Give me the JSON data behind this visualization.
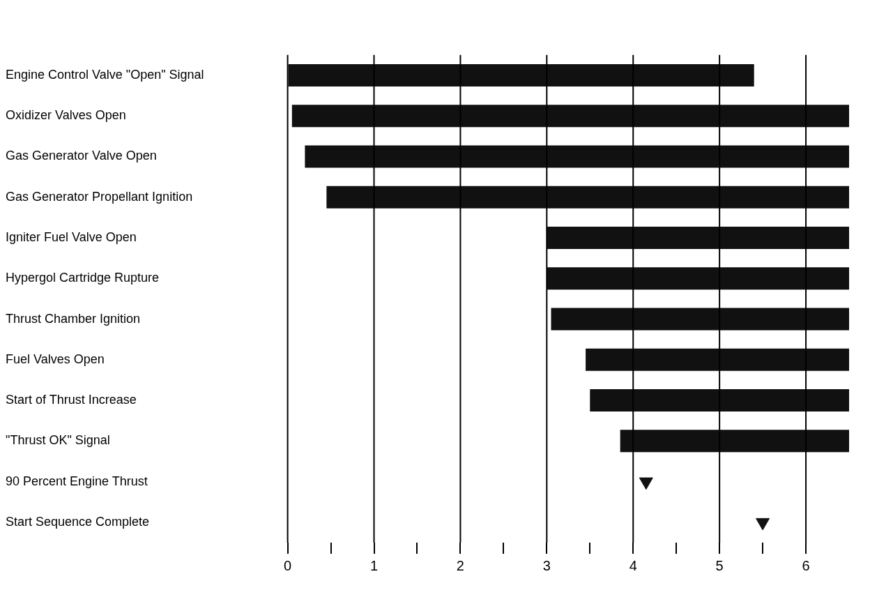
{
  "chart_data": {
    "type": "bar",
    "orientation": "horizontal",
    "categories": [
      "Engine Control Valve \"Open\" Signal",
      "Oxidizer Valves Open",
      "Gas Generator Valve Open",
      "Gas Generator Propellant Ignition",
      "Igniter Fuel Valve Open",
      "Hypergol Cartridge Rupture",
      "Thrust Chamber Ignition",
      "Fuel Valves Open",
      "Start of Thrust Increase",
      "\"Thrust OK\" Signal",
      "90 Percent Engine Thrust",
      "Start Sequence Complete"
    ],
    "series": [
      {
        "color": "#111111",
        "base": [
          0,
          0.05,
          0.2,
          0.45,
          3.0,
          3.0,
          3.05,
          3.45,
          3.5,
          3.85,
          null,
          null
        ],
        "values": [
          5.4,
          6.45,
          6.3,
          6.05,
          3.5,
          3.5,
          3.45,
          3.05,
          3.0,
          2.65,
          null,
          null
        ]
      },
      {
        "type": "scatter",
        "marker": "triangle",
        "color": "#111111",
        "values": [
          null,
          null,
          null,
          null,
          null,
          null,
          null,
          null,
          null,
          null,
          4.15,
          5.5
        ]
      }
    ],
    "xlim": [
      0,
      6.5
    ],
    "xticks": [
      0,
      {
        "value": 0.5,
        "label": null
      },
      1,
      {
        "value": 1.5,
        "label": null
      },
      2,
      {
        "value": 2.5,
        "label": null
      },
      3,
      {
        "value": 3.5,
        "label": null
      },
      4,
      {
        "value": 4.5,
        "label": null
      },
      5,
      {
        "value": 5.5,
        "label": null
      },
      6
    ],
    "grid": "x",
    "legend": false
  }
}
